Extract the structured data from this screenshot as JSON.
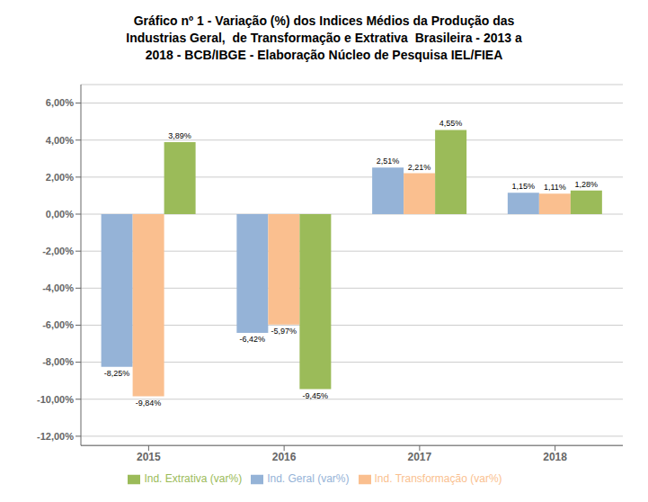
{
  "chart_data": {
    "type": "bar",
    "title": "Gráfico nº 1 - Variação (%) dos Indices Médios da Produção das\nIndustrias Geral,  de Transformação e Extrativa  Brasileira - 2013 a\n2018 - BCB/IBGE - Elaboração Núcleo de Pesquisa IEL/FIEA",
    "categories": [
      "2015",
      "2016",
      "2017",
      "2018"
    ],
    "series": [
      {
        "name": "Ind. Geral (var%)",
        "color": "#95B3D7",
        "values": [
          -8.25,
          -6.42,
          2.51,
          1.15
        ],
        "value_labels": [
          "-8,25%",
          "-6,42%",
          "2,51%",
          "1,15%"
        ]
      },
      {
        "name": "Ind. Transformação (var%)",
        "color": "#FABF8F",
        "values": [
          -9.84,
          -5.97,
          2.21,
          1.11
        ],
        "value_labels": [
          "-9,84%",
          "-5,97%",
          "2,21%",
          "1,11%"
        ]
      },
      {
        "name": "Ind. Extrativa (var%)",
        "color": "#9BBB59",
        "values": [
          3.89,
          -9.45,
          4.55,
          1.28
        ],
        "value_labels": [
          "3,89%",
          "-9,45%",
          "4,55%",
          "1,28%"
        ]
      }
    ],
    "ylim": [
      -12.5,
      7.0
    ],
    "yticks": [
      {
        "value": -12.0,
        "label": "-12,00%"
      },
      {
        "value": -10.0,
        "label": "-10,00%"
      },
      {
        "value": -8.0,
        "label": "-8,00%"
      },
      {
        "value": -6.0,
        "label": "-6,00%"
      },
      {
        "value": -4.0,
        "label": "-4,00%"
      },
      {
        "value": -2.0,
        "label": "-2,00%"
      },
      {
        "value": 0.0,
        "label": "0,00%"
      },
      {
        "value": 2.0,
        "label": "2,00%"
      },
      {
        "value": 4.0,
        "label": "4,00%"
      },
      {
        "value": 6.0,
        "label": "6,00%"
      }
    ],
    "grid": true,
    "data_labels": true,
    "legend": "bottom"
  }
}
